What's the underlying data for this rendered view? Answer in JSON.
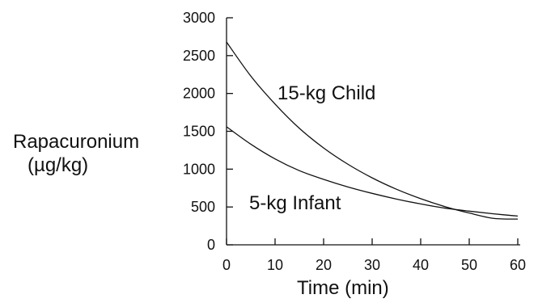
{
  "chart_data": {
    "type": "line",
    "title": "",
    "xlabel": "Time (min)",
    "ylabel_line1": "Rapacuronium",
    "ylabel_line2": "(µg/kg)",
    "xlim": [
      0,
      60
    ],
    "ylim": [
      0,
      3000
    ],
    "x_ticks": [
      0,
      10,
      20,
      30,
      40,
      50,
      60
    ],
    "y_ticks": [
      0,
      500,
      1000,
      1500,
      2000,
      2500,
      3000
    ],
    "x_tick_labels": [
      "0",
      "10",
      "20",
      "30",
      "40",
      "50",
      "60"
    ],
    "y_tick_labels": [
      "0",
      "500",
      "1000",
      "1500",
      "2000",
      "2500",
      "3000"
    ],
    "grid": false,
    "legend": "none",
    "series": [
      {
        "name": "15-kg Child",
        "x": [
          0,
          5,
          10,
          15,
          20,
          25,
          30,
          35,
          40,
          45,
          50,
          55,
          60
        ],
        "y": [
          2680,
          2230,
          1860,
          1540,
          1280,
          1065,
          885,
          735,
          610,
          505,
          420,
          350,
          340
        ]
      },
      {
        "name": "5-kg Infant",
        "x": [
          0,
          5,
          10,
          15,
          20,
          25,
          30,
          35,
          40,
          45,
          50,
          55,
          60
        ],
        "y": [
          1560,
          1330,
          1135,
          980,
          865,
          765,
          680,
          605,
          540,
          485,
          445,
          410,
          380
        ]
      }
    ]
  }
}
